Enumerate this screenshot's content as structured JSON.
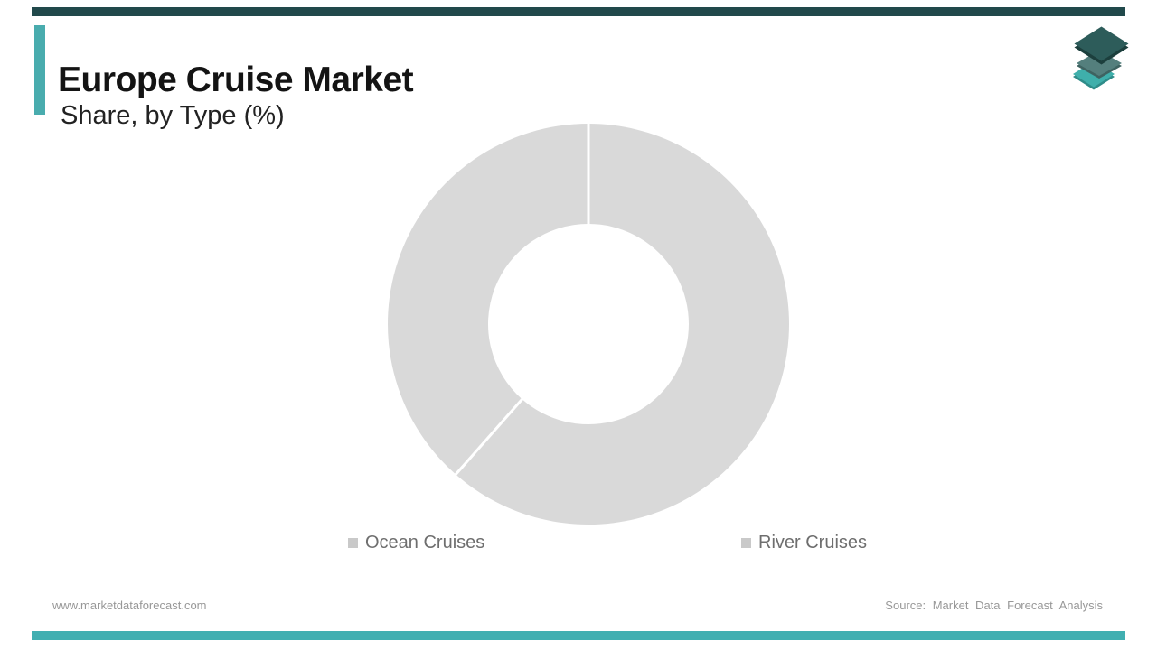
{
  "header": {
    "title": "Europe Cruise Market",
    "subtitle": "Share, by Type (%)"
  },
  "logo": {
    "name": "market-data-forecast-logo",
    "layer_colors": [
      "#3FAFAB",
      "#547F7D",
      "#2D5C5A"
    ],
    "layer_edge_colors": [
      "#2F8C89",
      "#3E6361",
      "#1C3F3D"
    ]
  },
  "chart_data": {
    "type": "pie",
    "donut": true,
    "inner_radius_ratio": 0.5,
    "title": "Europe Cruise Market Share, by Type (%)",
    "categories": [
      "Ocean Cruises",
      "River Cruises"
    ],
    "values": [
      61.5,
      38.5
    ],
    "unit": "%",
    "start_angle_deg": 0,
    "clockwise": true,
    "slice_color": "#D9D9D9",
    "divider_color": "#FFFFFF",
    "legend_position": "bottom",
    "data_labels_shown": false
  },
  "legend": {
    "items": [
      {
        "label": "Ocean Cruises"
      },
      {
        "label": "River Cruises"
      }
    ]
  },
  "footer": {
    "website": "www.marketdataforecast.com",
    "source": "Source: Market Data Forecast Analysis"
  },
  "colors": {
    "top_bar": "#21494B",
    "bottom_bar": "#41AFB1",
    "accent_teal": "#49ACAE",
    "title_text": "#141414",
    "subtitle_text": "#222222",
    "legend_swatch": "#C9C9C9",
    "legend_text": "#6E6E6E",
    "footer_text": "#989898",
    "donut_gray": "#D9D9D9"
  }
}
